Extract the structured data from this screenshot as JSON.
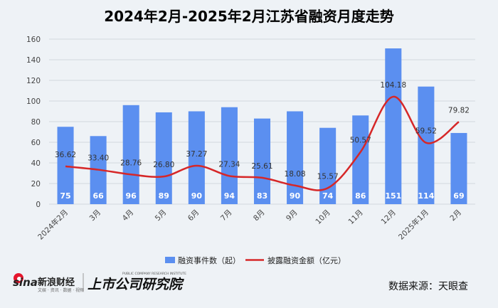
{
  "colors": {
    "background": "#eef2f6",
    "bar": "#5b8ff0",
    "line": "#d62728",
    "grid": "#d3d8de"
  },
  "chart_data": {
    "type": "bar",
    "title": "2024年2月-2025年2月江苏省融资月度走势",
    "categories": [
      "2024年2月",
      "3月",
      "4月",
      "5月",
      "6月",
      "7月",
      "8月",
      "9月",
      "10月",
      "11月",
      "12月",
      "2025年1月",
      "2月"
    ],
    "ylim": [
      0,
      160
    ],
    "yticks": [
      0,
      20,
      40,
      60,
      80,
      100,
      120,
      140,
      160
    ],
    "grid": true,
    "legend_position": "bottom",
    "series": [
      {
        "name": "融资事件数（起）",
        "type": "bar",
        "values": [
          75,
          66,
          96,
          89,
          90,
          94,
          83,
          90,
          74,
          86,
          151,
          114,
          69
        ]
      },
      {
        "name": "披露融资金额（亿元）",
        "type": "line",
        "values": [
          36.62,
          33.4,
          28.76,
          26.8,
          37.27,
          27.34,
          25.61,
          18.08,
          15.57,
          50.57,
          104.18,
          59.52,
          79.82
        ]
      }
    ]
  },
  "footer": {
    "source": "数据来源：天眼查",
    "logo_sina": "sina",
    "logo_sina_cn": "新浪财经",
    "logo_sina_sub": "文娱 · 资讯 · 数据 · 视频",
    "logo_brand": "上市公司研究院",
    "logo_brand_en": "PUBLIC COMPANY RESEARCH INSTITUTE"
  }
}
